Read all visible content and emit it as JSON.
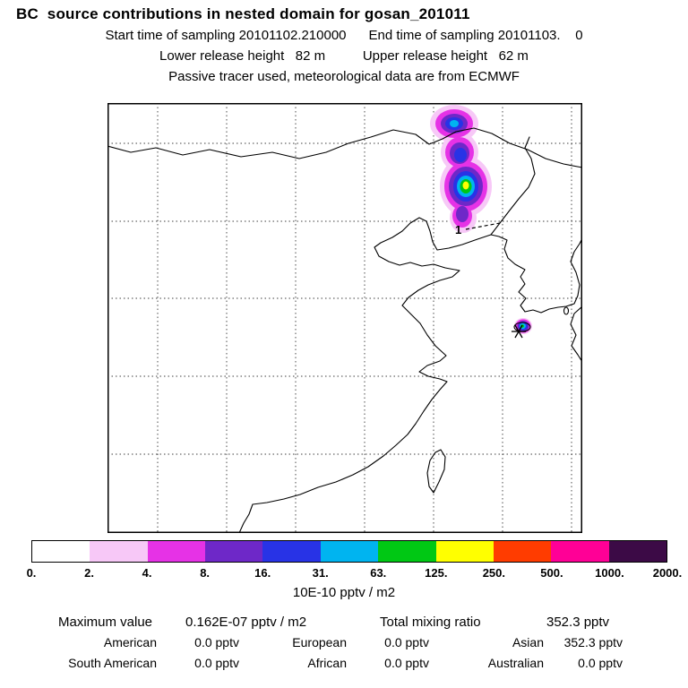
{
  "title": "BC  source contributions in nested domain for gosan_201011",
  "header": {
    "line1": "Start time of sampling 20101102.210000      End time of sampling 20101103.    0",
    "line2": "Lower release height   82 m          Upper release height   62 m",
    "line3": "Passive tracer used, meteorological data are from ECMWF"
  },
  "map": {
    "source_label": "1",
    "receptor": "Gosan (asterisk marker on Jeju island)"
  },
  "colorbar": {
    "unit": "10E-10 pptv / m2",
    "ticks": [
      "0.",
      "2.",
      "4.",
      "8.",
      "16.",
      "31.",
      "63.",
      "125.",
      "250.",
      "500.",
      "1000.",
      "2000."
    ],
    "colors": [
      "#FFFFFF",
      "#F7C8F7",
      "#E632E6",
      "#6E28C8",
      "#2833E6",
      "#00B4F0",
      "#00C814",
      "#FFFF00",
      "#FF3C00",
      "#FF0096",
      "#3C0A46"
    ]
  },
  "stats": {
    "max_label": "Maximum value",
    "max_value": "0.162E-07 pptv / m2",
    "tmr_label": "Total mixing ratio",
    "tmr_value": "352.3 pptv",
    "rows": [
      [
        {
          "label": "American",
          "value": "0.0 pptv"
        },
        {
          "label": "European",
          "value": "0.0 pptv"
        },
        {
          "label": "Asian",
          "value": "352.3 pptv"
        }
      ],
      [
        {
          "label": "South American",
          "value": "0.0 pptv"
        },
        {
          "label": "African",
          "value": "0.0 pptv"
        },
        {
          "label": "Australian",
          "value": "0.0 pptv"
        }
      ]
    ]
  },
  "chart_data": {
    "type": "heatmap",
    "title": "BC source contributions in nested domain for gosan_201011",
    "description": "Geographic footprint map over East Asia (China, Korea, Japan region) with dashed lat/lon gridlines. An elongated concentration plume extends from the top of the domain south over northeast China toward source point '1' near the Bohai Sea; plume core reaches the yellow bin (~125-250). A small secondary hotspot sits at the Gosan receptor on Jeju island, marked with a black asterisk.",
    "colorbar_unit": "10E-10 pptv / m2",
    "colorbar_levels": [
      0,
      2,
      4,
      8,
      16,
      31,
      63,
      125,
      250,
      500,
      1000,
      2000
    ],
    "colorbar_colors": [
      "#FFFFFF",
      "#F7C8F7",
      "#E632E6",
      "#6E28C8",
      "#2833E6",
      "#00B4F0",
      "#00C814",
      "#FFFF00",
      "#FF3C00",
      "#FF0096",
      "#3C0A46"
    ],
    "sampling": {
      "start_time": "20101102.210000",
      "end_time": "20101103.    0",
      "lower_release_height_m": 82,
      "upper_release_height_m": 62,
      "tracer": "Passive tracer used, meteorological data are from ECMWF"
    },
    "maximum_value": "0.162E-07 pptv / m2",
    "total_mixing_ratio_pptv": 352.3,
    "regional_contributions_pptv": {
      "American": 0.0,
      "European": 0.0,
      "Asian": 352.3,
      "South American": 0.0,
      "African": 0.0,
      "Australian": 0.0
    }
  }
}
